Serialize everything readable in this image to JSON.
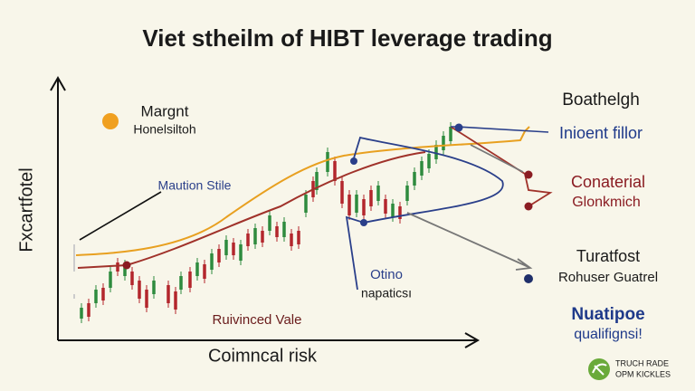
{
  "title": "Viet stheilm of HIBT leverage trading",
  "axes": {
    "y_label": "Fxcartfotel",
    "x_label": "Coimncal risk"
  },
  "left_labels": {
    "margin": "Margnt",
    "margin_sub": "Honelsiltoh",
    "motion": "Maution Stile",
    "revinced": "Ruivinced Vale",
    "option": "Otino",
    "option_sub": "napaticsı"
  },
  "right_labels": {
    "heading": "Boathelgh",
    "inioent": "Inioent fillor",
    "collateral": "Conaterial",
    "collateral_sub": "Glonkmich",
    "turatfost": "Turatfost",
    "turatfost_sub": "Rohuser Guatrel",
    "nuatipoe": "Nuatipoe",
    "qualif": "qualifignsi!"
  },
  "logo": {
    "line1": "TRUCH RADE",
    "line2": "OPM KICKLES"
  }
}
